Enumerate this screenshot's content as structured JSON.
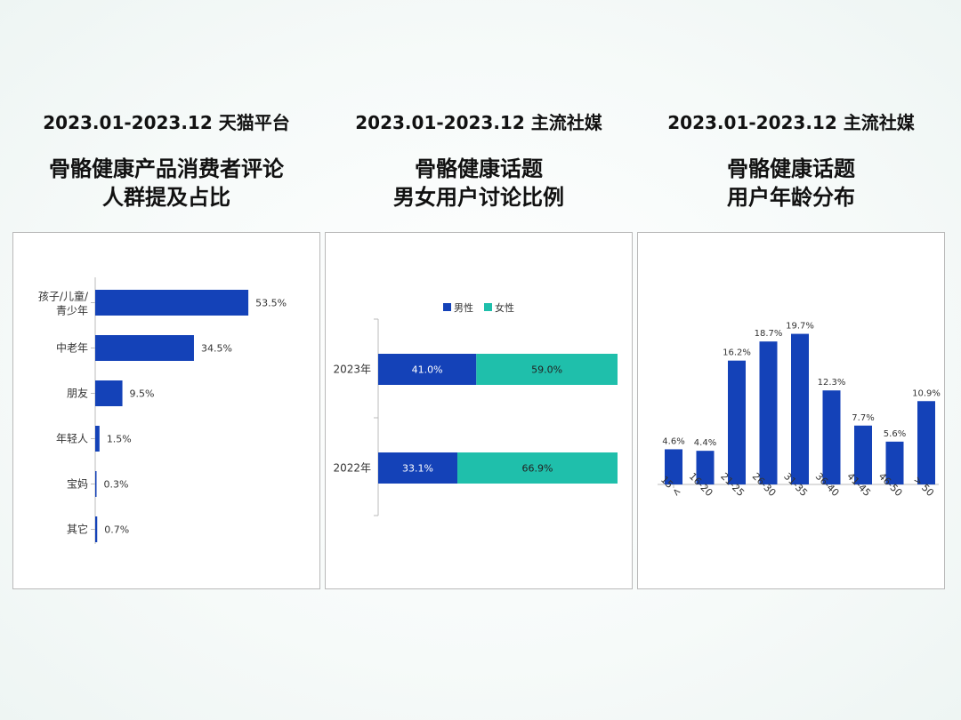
{
  "colors": {
    "male": "#1442b8",
    "female": "#1fbfab",
    "bar": "#1442b8"
  },
  "chart_data": [
    {
      "type": "bar",
      "orientation": "horizontal",
      "header": "2023.01-2023.12 天猫平台",
      "title_line1": "骨骼健康产品消费者评论",
      "title_line2": "人群提及占比",
      "categories": [
        {
          "line1": "孩子/儿童/",
          "line2": "青少年"
        },
        {
          "line1": "中老年",
          "line2": ""
        },
        {
          "line1": "朋友",
          "line2": ""
        },
        {
          "line1": "年轻人",
          "line2": ""
        },
        {
          "line1": "宝妈",
          "line2": ""
        },
        {
          "line1": "其它",
          "line2": ""
        }
      ],
      "values": [
        53.5,
        34.5,
        9.5,
        1.5,
        0.3,
        0.7
      ],
      "labels": [
        "53.5%",
        "34.5%",
        "9.5%",
        "1.5%",
        "0.3%",
        "0.7%"
      ],
      "xlim": [
        0,
        60
      ],
      "grid": false
    },
    {
      "type": "bar",
      "orientation": "horizontal",
      "stacked": true,
      "header": "2023.01-2023.12 主流社媒",
      "title_line1": "骨骼健康话题",
      "title_line2": "男女用户讨论比例",
      "legend_position": "top-center",
      "categories": [
        "2023年",
        "2022年"
      ],
      "series": [
        {
          "name": "男性",
          "values": [
            41.0,
            33.1
          ],
          "labels": [
            "41.0%",
            "33.1%"
          ]
        },
        {
          "name": "女性",
          "values": [
            59.0,
            66.9
          ],
          "labels": [
            "59.0%",
            "66.9%"
          ]
        }
      ],
      "xlim": [
        0,
        100
      ],
      "grid": false
    },
    {
      "type": "bar",
      "orientation": "vertical",
      "header": "2023.01-2023.12 主流社媒",
      "title_line1": "骨骼健康话题",
      "title_line2": "用户年龄分布",
      "categories": [
        "15 <",
        "16-20",
        "21-25",
        "26-30",
        "31-35",
        "36-40",
        "41-45",
        "46-50",
        "> 50"
      ],
      "values": [
        4.6,
        4.4,
        16.2,
        18.7,
        19.7,
        12.3,
        7.7,
        5.6,
        10.9
      ],
      "labels": [
        "4.6%",
        "4.4%",
        "16.2%",
        "18.7%",
        "19.7%",
        "12.3%",
        "7.7%",
        "5.6%",
        "10.9%"
      ],
      "ylim": [
        0,
        20
      ],
      "grid": false
    }
  ]
}
